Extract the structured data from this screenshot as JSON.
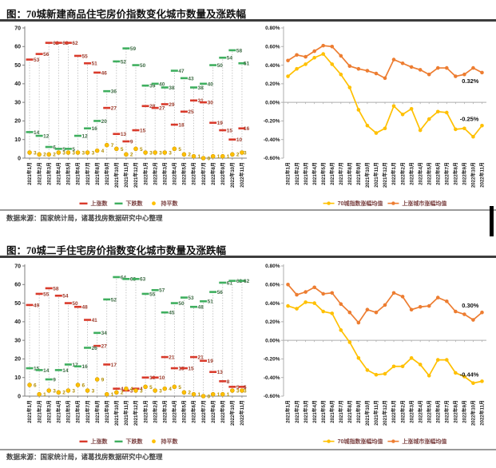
{
  "panels": [
    {
      "title": "图：70城新建商品住宅房价指数变化城市数量及涨跌幅",
      "source": "数据来源：国家统计局，诸葛找房数据研究中心整理"
    },
    {
      "title": "图：70城二手住宅房价指数变化城市数量及涨跌幅",
      "source": "数据来源：国家统计局，诸葛找房数据研究中心整理"
    }
  ],
  "months": [
    "2021年1月",
    "2021年2月",
    "2021年3月",
    "2021年4月",
    "2021年5月",
    "2021年6月",
    "2021年7月",
    "2021年8月",
    "2021年9月",
    "2021年10月",
    "2021年11月",
    "2021年12月",
    "2022年1月",
    "2022年2月",
    "2022年3月",
    "2022年4月",
    "2022年5月",
    "2022年6月",
    "2022年7月",
    "2022年8月",
    "2022年9月",
    "2022年10月",
    "2022年11月"
  ],
  "chart_data": [
    {
      "id": "new-homes-city-count",
      "type": "dash-scatter",
      "ylim": [
        0,
        70
      ],
      "ystep": 10,
      "legend_position": "bottom",
      "series": [
        {
          "name": "上涨数",
          "marker": "dash",
          "color": "#D93A2B",
          "label_color": "#9B3A2B",
          "values": [
            53,
            56,
            62,
            62,
            62,
            55,
            51,
            46,
            27,
            13,
            9,
            15,
            28,
            27,
            29,
            18,
            25,
            31,
            30,
            19,
            15,
            10,
            16
          ]
        },
        {
          "name": "下跌数",
          "marker": "dash",
          "color": "#3FAF5F",
          "label_color": "#3D6B44",
          "values": [
            14,
            12,
            6,
            5,
            5,
            12,
            16,
            20,
            36,
            52,
            59,
            50,
            39,
            40,
            38,
            47,
            43,
            38,
            40,
            50,
            54,
            58,
            51
          ]
        },
        {
          "name": "持平数",
          "marker": "dot",
          "color": "#FFC000",
          "label_color": "#B08C00",
          "values": [
            3,
            2,
            2,
            3,
            3,
            3,
            3,
            4,
            7,
            5,
            2,
            5,
            3,
            3,
            3,
            5,
            2,
            1,
            0,
            1,
            1,
            2,
            3
          ]
        }
      ]
    },
    {
      "id": "new-homes-change-rate",
      "type": "line",
      "ylim": [
        -0.6,
        0.8
      ],
      "ystep": 0.2,
      "percent": true,
      "legend_position": "bottom",
      "series": [
        {
          "name": "70城指数涨幅均值",
          "color": "#FFC000",
          "values": [
            0.28,
            0.36,
            0.41,
            0.48,
            0.52,
            0.41,
            0.3,
            0.16,
            -0.08,
            -0.25,
            -0.33,
            -0.28,
            -0.04,
            -0.13,
            -0.07,
            -0.3,
            -0.18,
            -0.1,
            -0.11,
            -0.29,
            -0.28,
            -0.37,
            -0.25
          ]
        },
        {
          "name": "上涨城市涨幅均值",
          "color": "#ED7D31",
          "values": [
            0.45,
            0.51,
            0.49,
            0.55,
            0.61,
            0.6,
            0.5,
            0.39,
            0.36,
            0.34,
            0.31,
            0.26,
            0.46,
            0.42,
            0.38,
            0.35,
            0.3,
            0.37,
            0.37,
            0.28,
            0.3,
            0.37,
            0.32
          ]
        }
      ],
      "annotations": [
        {
          "text": "0.32%",
          "series": 1,
          "position": "below-left"
        },
        {
          "text": "-0.25%",
          "series": 0,
          "position": "above-left"
        }
      ]
    },
    {
      "id": "secondhand-city-count",
      "type": "dash-scatter",
      "ylim": [
        0,
        70
      ],
      "ystep": 10,
      "legend_position": "bottom",
      "series": [
        {
          "name": "上涨数",
          "marker": "dash",
          "color": "#D93A2B",
          "label_color": "#9B3A2B",
          "values": [
            49,
            55,
            58,
            54,
            50,
            48,
            41,
            27,
            17,
            4,
            3,
            4,
            10,
            10,
            21,
            15,
            15,
            21,
            19,
            13,
            8,
            5,
            5
          ]
        },
        {
          "name": "下跌数",
          "marker": "dash",
          "color": "#3FAF5F",
          "label_color": "#3D6B44",
          "values": [
            15,
            14,
            9,
            14,
            17,
            16,
            26,
            34,
            52,
            64,
            63,
            63,
            55,
            57,
            45,
            50,
            53,
            48,
            51,
            56,
            61,
            62,
            62
          ]
        },
        {
          "name": "持平数",
          "marker": "dot",
          "color": "#FFC000",
          "label_color": "#B08C00",
          "values": [
            6,
            1,
            3,
            2,
            3,
            6,
            3,
            9,
            1,
            2,
            4,
            3,
            5,
            3,
            4,
            5,
            2,
            1,
            0,
            1,
            1,
            3,
            3
          ]
        }
      ]
    },
    {
      "id": "secondhand-change-rate",
      "type": "line",
      "ylim": [
        -0.6,
        0.8
      ],
      "ystep": 0.2,
      "percent": true,
      "legend_position": "bottom",
      "series": [
        {
          "name": "70城指数涨幅均值",
          "color": "#FFC000",
          "values": [
            0.37,
            0.34,
            0.41,
            0.4,
            0.31,
            0.29,
            0.11,
            -0.02,
            -0.19,
            -0.32,
            -0.37,
            -0.36,
            -0.28,
            -0.28,
            -0.19,
            -0.26,
            -0.38,
            -0.21,
            -0.21,
            -0.35,
            -0.39,
            -0.46,
            -0.44
          ]
        },
        {
          "name": "上涨城市涨幅均值",
          "color": "#ED7D31",
          "values": [
            0.6,
            0.49,
            0.52,
            0.57,
            0.5,
            0.51,
            0.39,
            0.3,
            0.19,
            0.33,
            0.3,
            0.38,
            0.51,
            0.47,
            0.33,
            0.36,
            0.37,
            0.46,
            0.42,
            0.31,
            0.28,
            0.22,
            0.3
          ]
        }
      ],
      "annotations": [
        {
          "text": "0.30%",
          "series": 1,
          "position": "above-left"
        },
        {
          "text": "-0.44%",
          "series": 0,
          "position": "above-left"
        }
      ]
    }
  ]
}
